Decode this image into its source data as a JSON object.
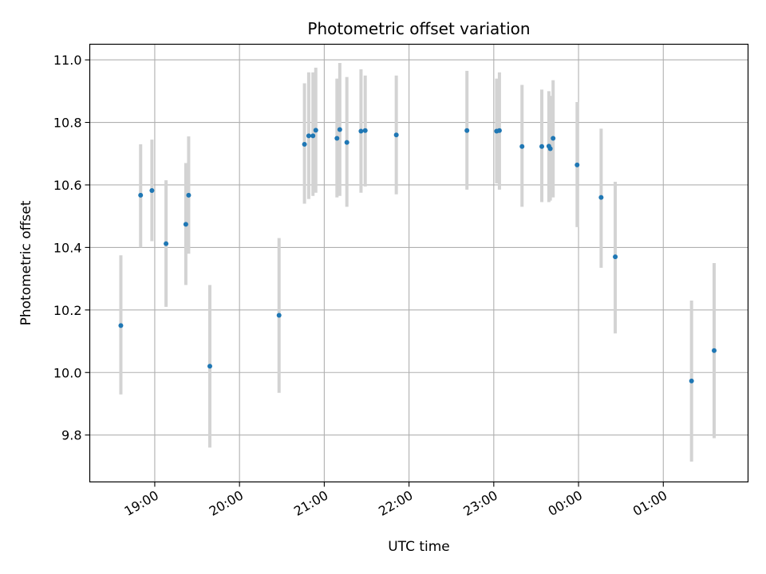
{
  "chart_data": {
    "type": "scatter",
    "title": "Photometric offset variation",
    "xlabel": "UTC time",
    "ylabel": "Photometric offset",
    "grid": true,
    "x_ticks": [
      "19:00",
      "20:00",
      "21:00",
      "22:00",
      "23:00",
      "00:00",
      "01:00"
    ],
    "x_range": [
      "18:14",
      "02:00"
    ],
    "ylim": [
      9.65,
      11.05
    ],
    "y_ticks": [
      "9.8",
      "10.0",
      "10.2",
      "10.4",
      "10.6",
      "10.8",
      "11.0"
    ],
    "colors": {
      "point": "#1f77b4",
      "errorbar": "#d3d3d3",
      "grid": "#b0b0b0"
    },
    "points": [
      {
        "t": "18:36",
        "y": 10.15,
        "ymin": 9.93,
        "ymax": 10.375
      },
      {
        "t": "18:50",
        "y": 10.567,
        "ymin": 10.4,
        "ymax": 10.73
      },
      {
        "t": "18:58",
        "y": 10.582,
        "ymin": 10.42,
        "ymax": 10.745
      },
      {
        "t": "19:08",
        "y": 10.412,
        "ymin": 10.21,
        "ymax": 10.615
      },
      {
        "t": "19:22",
        "y": 10.474,
        "ymin": 10.28,
        "ymax": 10.67
      },
      {
        "t": "19:24",
        "y": 10.567,
        "ymin": 10.38,
        "ymax": 10.755
      },
      {
        "t": "19:39",
        "y": 10.02,
        "ymin": 9.76,
        "ymax": 10.28
      },
      {
        "t": "20:28",
        "y": 10.183,
        "ymin": 9.935,
        "ymax": 10.43
      },
      {
        "t": "20:46",
        "y": 10.73,
        "ymin": 10.54,
        "ymax": 10.925
      },
      {
        "t": "20:49",
        "y": 10.757,
        "ymin": 10.555,
        "ymax": 10.96
      },
      {
        "t": "20:52",
        "y": 10.757,
        "ymin": 10.565,
        "ymax": 10.96
      },
      {
        "t": "20:54",
        "y": 10.775,
        "ymin": 10.575,
        "ymax": 10.975
      },
      {
        "t": "21:09",
        "y": 10.749,
        "ymin": 10.56,
        "ymax": 10.94
      },
      {
        "t": "21:11",
        "y": 10.777,
        "ymin": 10.565,
        "ymax": 10.99
      },
      {
        "t": "21:16",
        "y": 10.736,
        "ymin": 10.53,
        "ymax": 10.945
      },
      {
        "t": "21:26",
        "y": 10.772,
        "ymin": 10.575,
        "ymax": 10.97
      },
      {
        "t": "21:29",
        "y": 10.774,
        "ymin": 10.595,
        "ymax": 10.95
      },
      {
        "t": "21:51",
        "y": 10.76,
        "ymin": 10.57,
        "ymax": 10.95
      },
      {
        "t": "22:41",
        "y": 10.774,
        "ymin": 10.585,
        "ymax": 10.965
      },
      {
        "t": "23:02",
        "y": 10.772,
        "ymin": 10.605,
        "ymax": 10.94
      },
      {
        "t": "23:04",
        "y": 10.774,
        "ymin": 10.585,
        "ymax": 10.96
      },
      {
        "t": "23:20",
        "y": 10.723,
        "ymin": 10.53,
        "ymax": 10.92
      },
      {
        "t": "23:34",
        "y": 10.723,
        "ymin": 10.545,
        "ymax": 10.905
      },
      {
        "t": "23:39",
        "y": 10.724,
        "ymin": 10.545,
        "ymax": 10.9
      },
      {
        "t": "23:40",
        "y": 10.716,
        "ymin": 10.55,
        "ymax": 10.885
      },
      {
        "t": "23:42",
        "y": 10.749,
        "ymin": 10.56,
        "ymax": 10.935
      },
      {
        "t": "23:59",
        "y": 10.664,
        "ymin": 10.465,
        "ymax": 10.865
      },
      {
        "t": "00:16",
        "y": 10.56,
        "ymin": 10.335,
        "ymax": 10.78
      },
      {
        "t": "00:26",
        "y": 10.37,
        "ymin": 10.125,
        "ymax": 10.61
      },
      {
        "t": "01:20",
        "y": 9.973,
        "ymin": 9.715,
        "ymax": 10.23
      },
      {
        "t": "01:36",
        "y": 10.07,
        "ymin": 9.79,
        "ymax": 10.35
      }
    ]
  }
}
